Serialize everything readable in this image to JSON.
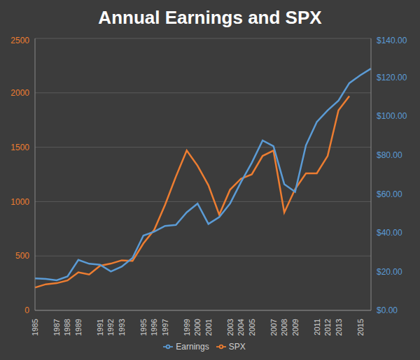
{
  "chart_data": {
    "type": "line",
    "title": "Annual Earnings and SPX",
    "categories": [
      "1985",
      null,
      "1987",
      "1988",
      "1989",
      null,
      "1991",
      "1992",
      "1993",
      null,
      "1995",
      "1996",
      "1997",
      null,
      "1999",
      "2000",
      "2001",
      null,
      "2003",
      "2004",
      "2005",
      null,
      "2007",
      "2008",
      "2009",
      null,
      "2011",
      "2012",
      "2013",
      null,
      "2015",
      null
    ],
    "series": [
      {
        "name": "SPX",
        "color": "#ed7d31",
        "values": [
          210,
          240,
          250,
          275,
          350,
          330,
          410,
          430,
          460,
          455,
          615,
          740,
          970,
          1230,
          1470,
          1330,
          1150,
          880,
          1110,
          1210,
          1250,
          1420,
          1470,
          900,
          1115,
          1260,
          1260,
          1420,
          1840,
          1970,
          null,
          null
        ]
      },
      {
        "name": "Earnings",
        "color": "#5b9bd5",
        "axis": "y2",
        "values": [
          16.5,
          16.2,
          15.5,
          17.5,
          26,
          24,
          23.5,
          20,
          22.5,
          27,
          38.5,
          40.5,
          43.5,
          44,
          50.5,
          55,
          44.5,
          48,
          55,
          66,
          76,
          87.5,
          84.5,
          65,
          61,
          85,
          97,
          103,
          108,
          117,
          121,
          124.5
        ]
      }
    ],
    "ylim": [
      0,
      2500
    ],
    "yticks": [
      0,
      500,
      1000,
      1500,
      2000,
      2500
    ],
    "y2lim": [
      0,
      140
    ],
    "y2ticks": [
      {
        "value": 0,
        "label": "$0.00"
      },
      {
        "value": 20,
        "label": "$20.00"
      },
      {
        "value": 40,
        "label": "$40.00"
      },
      {
        "value": 60,
        "label": "$60.00"
      },
      {
        "value": 80,
        "label": "$80.00"
      },
      {
        "value": 100,
        "label": "$100.00"
      },
      {
        "value": 120,
        "label": "$120.00"
      },
      {
        "value": 140,
        "label": "$140.00"
      }
    ],
    "grid": true,
    "legend": "bottom"
  }
}
